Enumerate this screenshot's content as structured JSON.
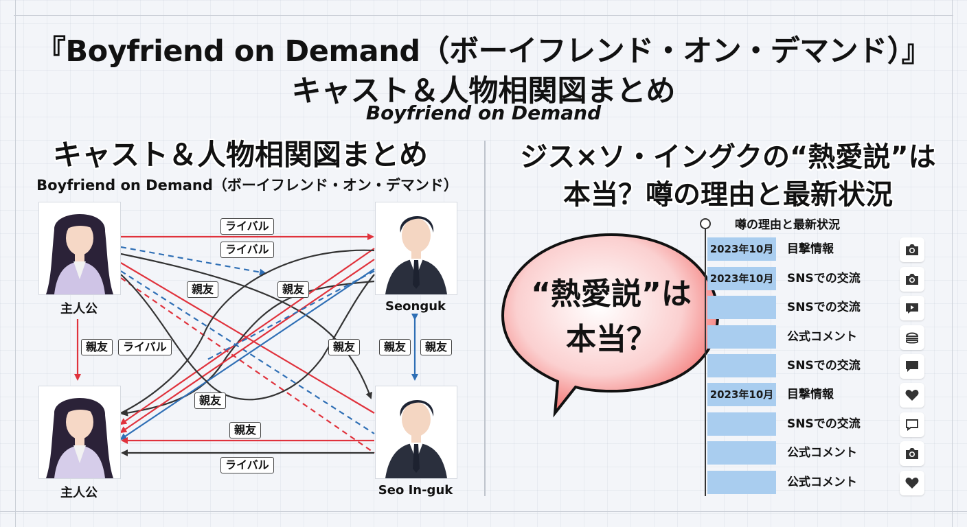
{
  "header": {
    "title_line1": "『Boyfriend on Demand（ボーイフレンド・オン・デマンド）』",
    "title_line2": "キャスト＆人物相関図まとめ",
    "subtitle": "Boyfriend on Demand"
  },
  "left_panel": {
    "heading": "キャスト＆人物相関図まとめ",
    "subheading": "Boyfriend on Demand（ボーイフレンド・オン・デマンド）",
    "characters": [
      {
        "name": "主人公",
        "gender": "female"
      },
      {
        "name": "Seonguk",
        "gender": "male"
      },
      {
        "name": "主人公",
        "gender": "female"
      },
      {
        "name": "Seo In-guk",
        "gender": "male"
      }
    ],
    "relations": [
      "ライバル",
      "ライバル",
      "親友",
      "親友",
      "親友",
      "ライバル",
      "親友",
      "親友",
      "親友",
      "親友",
      "ライバル",
      "親友"
    ],
    "colors": {
      "red": "#e0323c",
      "blue": "#2f6fb5",
      "dark": "#333333"
    }
  },
  "right_panel": {
    "heading_line1": "ジス×ソ・イングクの“熱愛説”は",
    "heading_line2": "本当？噂の理由と最新状況",
    "bubble": {
      "line1": "“熱愛説”は",
      "line2": "本当？"
    },
    "timeline": {
      "title": "噂の理由と最新状況",
      "rows": [
        {
          "date": "2023年10月",
          "label": "目撃情報",
          "icon": "camera-icon"
        },
        {
          "date": "2023年10月",
          "label": "SNSでの交流",
          "icon": "camera-icon"
        },
        {
          "date": "",
          "label": "SNSでの交流",
          "icon": "video-play-icon"
        },
        {
          "date": "",
          "label": "公式コメント",
          "icon": "hamburger-icon"
        },
        {
          "date": "",
          "label": "SNSでの交流",
          "icon": "chat-bubble-icon"
        },
        {
          "date": "2023年10月",
          "label": "目撃情報",
          "icon": "heart-icon"
        },
        {
          "date": "",
          "label": "SNSでの交流",
          "icon": "message-outline-icon"
        },
        {
          "date": "",
          "label": "公式コメント",
          "icon": "camera-icon"
        },
        {
          "date": "",
          "label": "公式コメント",
          "icon": "heart-icon"
        }
      ]
    }
  }
}
